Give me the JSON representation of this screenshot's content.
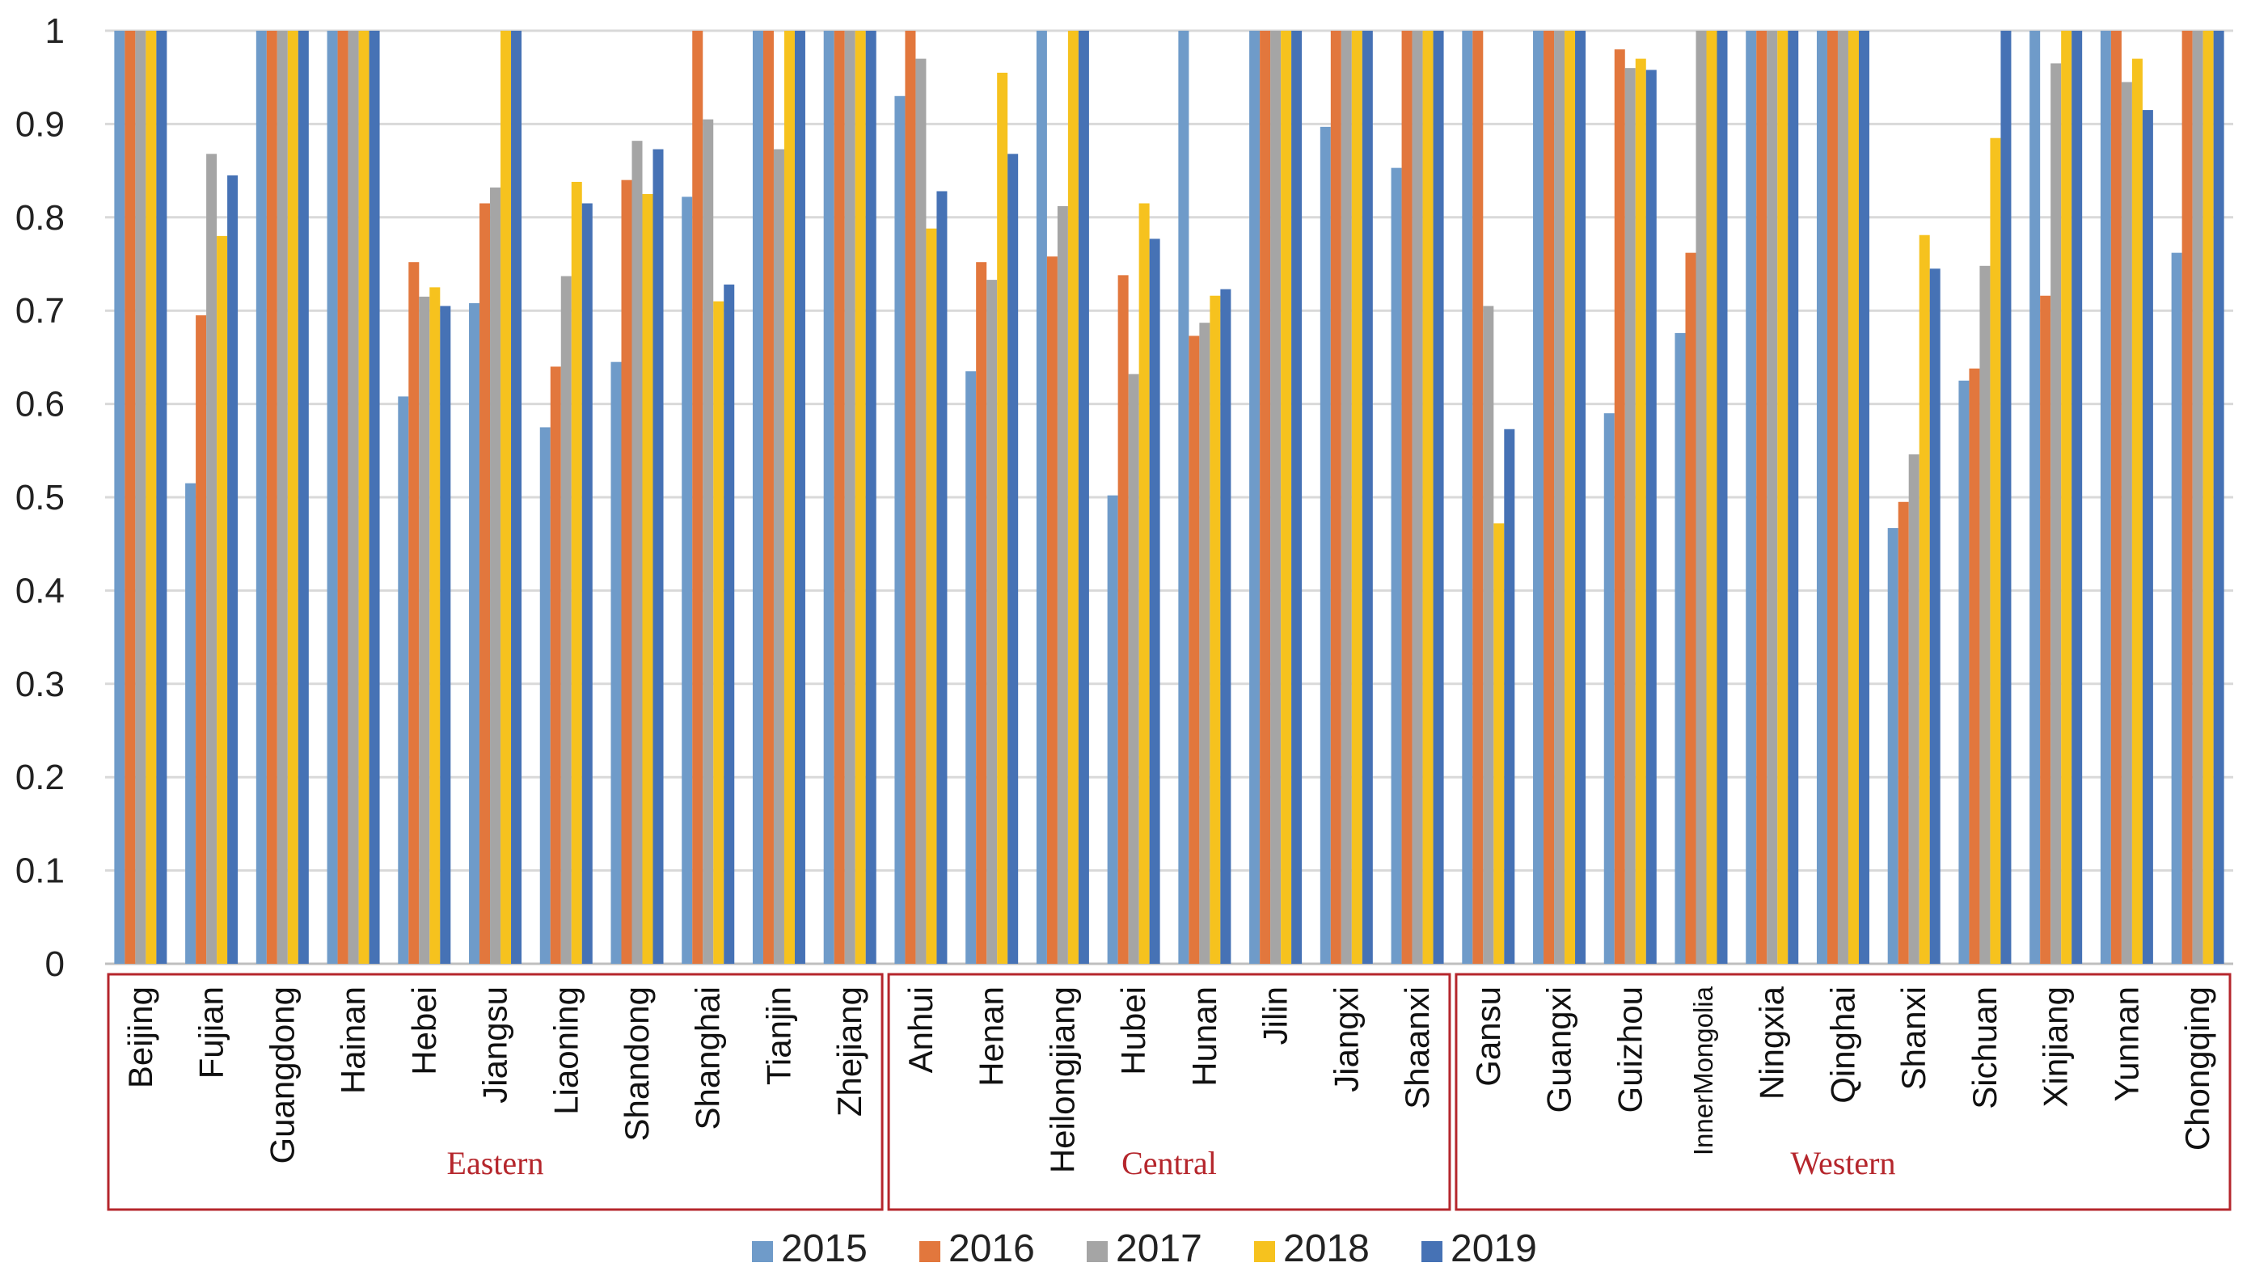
{
  "chart_data": {
    "type": "bar",
    "title": "",
    "xlabel": "",
    "ylabel": "",
    "ylim": [
      0,
      1
    ],
    "yticks": [
      "0",
      "0.1",
      "0.2",
      "0.3",
      "0.4",
      "0.5",
      "0.6",
      "0.7",
      "0.8",
      "0.9",
      "1"
    ],
    "grid": true,
    "legend_position": "bottom-center",
    "categories": [
      "Beijing",
      "Fujian",
      "Guangdong",
      "Hainan",
      "Hebei",
      "Jiangsu",
      "Liaoning",
      "Shandong",
      "Shanghai",
      "Tianjin",
      "Zhejiang",
      "Anhui",
      "Henan",
      "Heilongjiang",
      "Hubei",
      "Hunan",
      "Jilin",
      "Jiangxi",
      "Shaanxi",
      "Gansu",
      "Guangxi",
      "Guizhou",
      "InnerMongolia",
      "Ningxia",
      "Qinghai",
      "Shanxi",
      "Sichuan",
      "Xinjiang",
      "Yunnan",
      "Chongqing"
    ],
    "regions": [
      {
        "name": "Eastern",
        "start": 0,
        "end": 10
      },
      {
        "name": "Central",
        "start": 11,
        "end": 18
      },
      {
        "name": "Western",
        "start": 19,
        "end": 29
      }
    ],
    "series": [
      {
        "name": "2015",
        "color": "#6f9bc9",
        "values": [
          1,
          0.515,
          1,
          1,
          0.608,
          0.708,
          0.575,
          0.645,
          0.822,
          1,
          1,
          0.93,
          0.635,
          1,
          0.502,
          1,
          1,
          0.897,
          0.853,
          1,
          1,
          0.59,
          0.676,
          1,
          1,
          0.467,
          0.625,
          1,
          1,
          0.762
        ]
      },
      {
        "name": "2016",
        "color": "#e2773d",
        "values": [
          1,
          0.695,
          1,
          1,
          0.752,
          0.815,
          0.64,
          0.84,
          1,
          1,
          1,
          1,
          0.752,
          0.758,
          0.738,
          0.673,
          1,
          1,
          1,
          1,
          1,
          0.98,
          0.762,
          1,
          1,
          0.495,
          0.638,
          0.716,
          1,
          1
        ]
      },
      {
        "name": "2017",
        "color": "#a5a5a5",
        "values": [
          1,
          0.868,
          1,
          1,
          0.715,
          0.832,
          0.737,
          0.882,
          0.905,
          0.873,
          1,
          0.97,
          0.733,
          0.812,
          0.632,
          0.687,
          1,
          1,
          1,
          0.705,
          1,
          0.96,
          1,
          1,
          1,
          0.546,
          0.748,
          0.965,
          0.945,
          1
        ]
      },
      {
        "name": "2018",
        "color": "#f6c21e",
        "values": [
          1,
          0.78,
          1,
          1,
          0.725,
          1,
          0.838,
          0.825,
          0.71,
          1,
          1,
          0.788,
          0.955,
          1,
          0.815,
          0.716,
          1,
          1,
          1,
          0.472,
          1,
          0.97,
          1,
          1,
          1,
          0.781,
          0.885,
          1,
          0.97,
          1
        ]
      },
      {
        "name": "2019",
        "color": "#4672b5",
        "values": [
          1,
          0.845,
          1,
          1,
          0.705,
          1,
          0.815,
          0.873,
          0.728,
          1,
          1,
          0.828,
          0.868,
          1,
          0.777,
          0.723,
          1,
          1,
          1,
          0.573,
          1,
          0.958,
          1,
          1,
          1,
          0.745,
          1,
          1,
          0.915,
          1
        ]
      }
    ]
  }
}
